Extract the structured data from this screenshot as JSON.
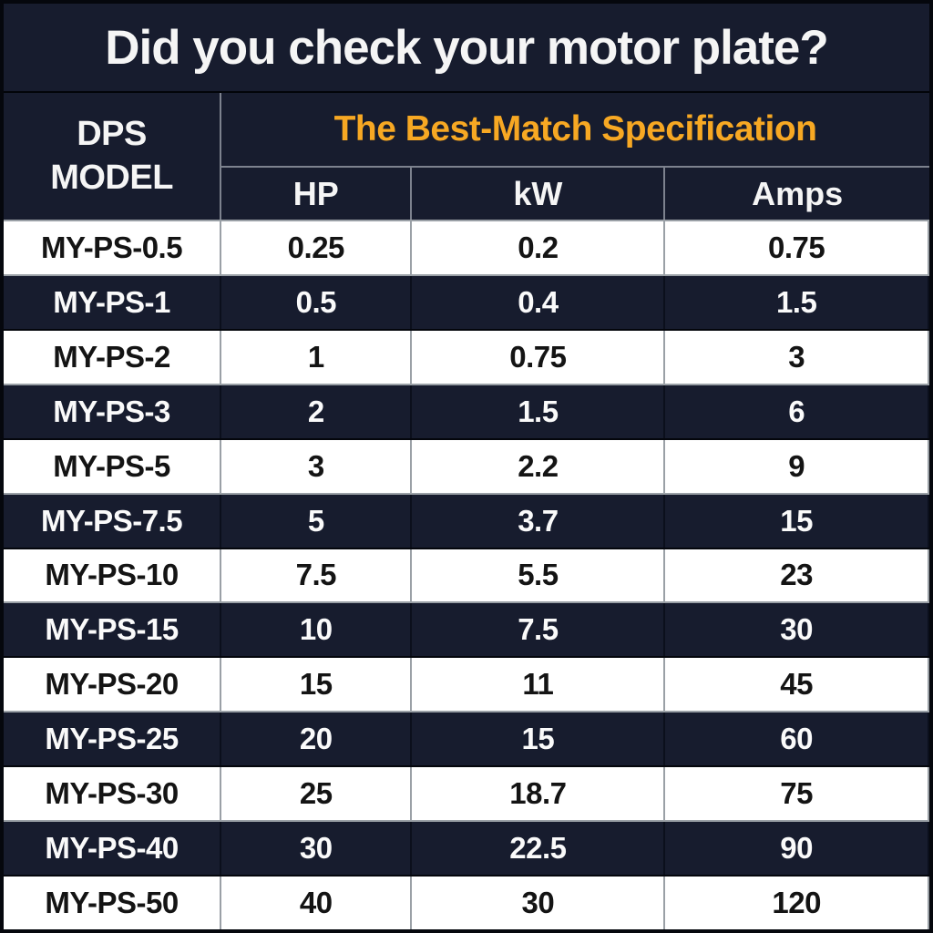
{
  "title": "Did you check your motor plate?",
  "header": {
    "model_label": "DPS\nMODEL",
    "spec_label": "The Best-Match Specification",
    "columns": [
      "HP",
      "kW",
      "Amps"
    ]
  },
  "colors": {
    "navy": "#171c2e",
    "orange": "#f7a823",
    "white_row": "#ffffff",
    "title_text": "#f5f5f5",
    "dark_text": "#141414"
  },
  "chart_data": {
    "type": "table",
    "title": "Did you check your motor plate?",
    "column_group_label": "The Best-Match Specification",
    "columns": [
      "DPS MODEL",
      "HP",
      "kW",
      "Amps"
    ],
    "rows": [
      [
        "MY-PS-0.5",
        "0.25",
        "0.2",
        "0.75"
      ],
      [
        "MY-PS-1",
        "0.5",
        "0.4",
        "1.5"
      ],
      [
        "MY-PS-2",
        "1",
        "0.75",
        "3"
      ],
      [
        "MY-PS-3",
        "2",
        "1.5",
        "6"
      ],
      [
        "MY-PS-5",
        "3",
        "2.2",
        "9"
      ],
      [
        "MY-PS-7.5",
        "5",
        "3.7",
        "15"
      ],
      [
        "MY-PS-10",
        "7.5",
        "5.5",
        "23"
      ],
      [
        "MY-PS-15",
        "10",
        "7.5",
        "30"
      ],
      [
        "MY-PS-20",
        "15",
        "11",
        "45"
      ],
      [
        "MY-PS-25",
        "20",
        "15",
        "60"
      ],
      [
        "MY-PS-30",
        "25",
        "18.7",
        "75"
      ],
      [
        "MY-PS-40",
        "30",
        "22.5",
        "90"
      ],
      [
        "MY-PS-50",
        "40",
        "30",
        "120"
      ]
    ]
  }
}
